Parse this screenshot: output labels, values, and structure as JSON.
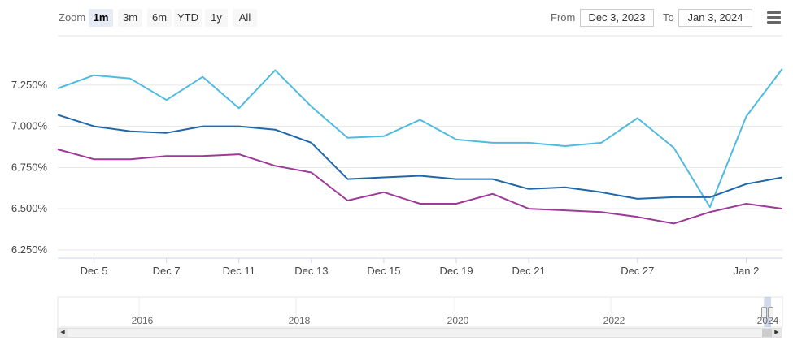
{
  "toolbar": {
    "zoom_label": "Zoom",
    "range_buttons": [
      "1m",
      "3m",
      "6m",
      "YTD",
      "1y",
      "All"
    ],
    "selected": "1m",
    "from_label": "From",
    "from_value": "Dec 3, 2023",
    "to_label": "To",
    "to_value": "Jan 3, 2024",
    "menu_icon": "hamburger-menu-icon"
  },
  "chart_data": {
    "type": "line",
    "title": "",
    "xlabel": "",
    "ylabel": "",
    "ylim": [
      6.2,
      7.55
    ],
    "y_ticks": [
      "6.250%",
      "6.500%",
      "6.750%",
      "7.000%",
      "7.250%"
    ],
    "y_tick_values": [
      6.25,
      6.5,
      6.75,
      7.0,
      7.25
    ],
    "x_tick_labels": [
      "Dec 5",
      "Dec 7",
      "Dec 11",
      "Dec 13",
      "Dec 15",
      "Dec 19",
      "Dec 21",
      "Dec 27",
      "Jan 2"
    ],
    "x_dates": [
      "Dec 4",
      "Dec 5",
      "Dec 6",
      "Dec 7",
      "Dec 8",
      "Dec 11",
      "Dec 12",
      "Dec 13",
      "Dec 14",
      "Dec 15",
      "Dec 18",
      "Dec 19",
      "Dec 20",
      "Dec 21",
      "Dec 22",
      "Dec 26",
      "Dec 27",
      "Dec 28",
      "Dec 29",
      "Jan 2",
      "Jan 3"
    ],
    "grid": true,
    "legend": "none",
    "series": [
      {
        "color": "#4fbbe0",
        "values": [
          7.23,
          7.31,
          7.29,
          7.16,
          7.3,
          7.11,
          7.34,
          7.12,
          6.93,
          6.94,
          7.04,
          6.92,
          6.9,
          6.9,
          6.88,
          6.9,
          7.05,
          6.87,
          6.51,
          7.06,
          7.35
        ]
      },
      {
        "color": "#1f67a8",
        "values": [
          7.07,
          7.0,
          6.97,
          6.96,
          7.0,
          7.0,
          6.98,
          6.9,
          6.68,
          6.69,
          6.7,
          6.68,
          6.68,
          6.62,
          6.63,
          6.6,
          6.56,
          6.57,
          6.57,
          6.65,
          6.69
        ]
      },
      {
        "color": "#9c3a98",
        "values": [
          6.86,
          6.8,
          6.8,
          6.82,
          6.82,
          6.83,
          6.76,
          6.72,
          6.55,
          6.6,
          6.53,
          6.53,
          6.59,
          6.5,
          6.49,
          6.48,
          6.45,
          6.41,
          6.48,
          6.53,
          6.5
        ]
      }
    ],
    "navigator": {
      "year_labels": [
        "2016",
        "2018",
        "2020",
        "2022",
        "2024"
      ]
    }
  }
}
